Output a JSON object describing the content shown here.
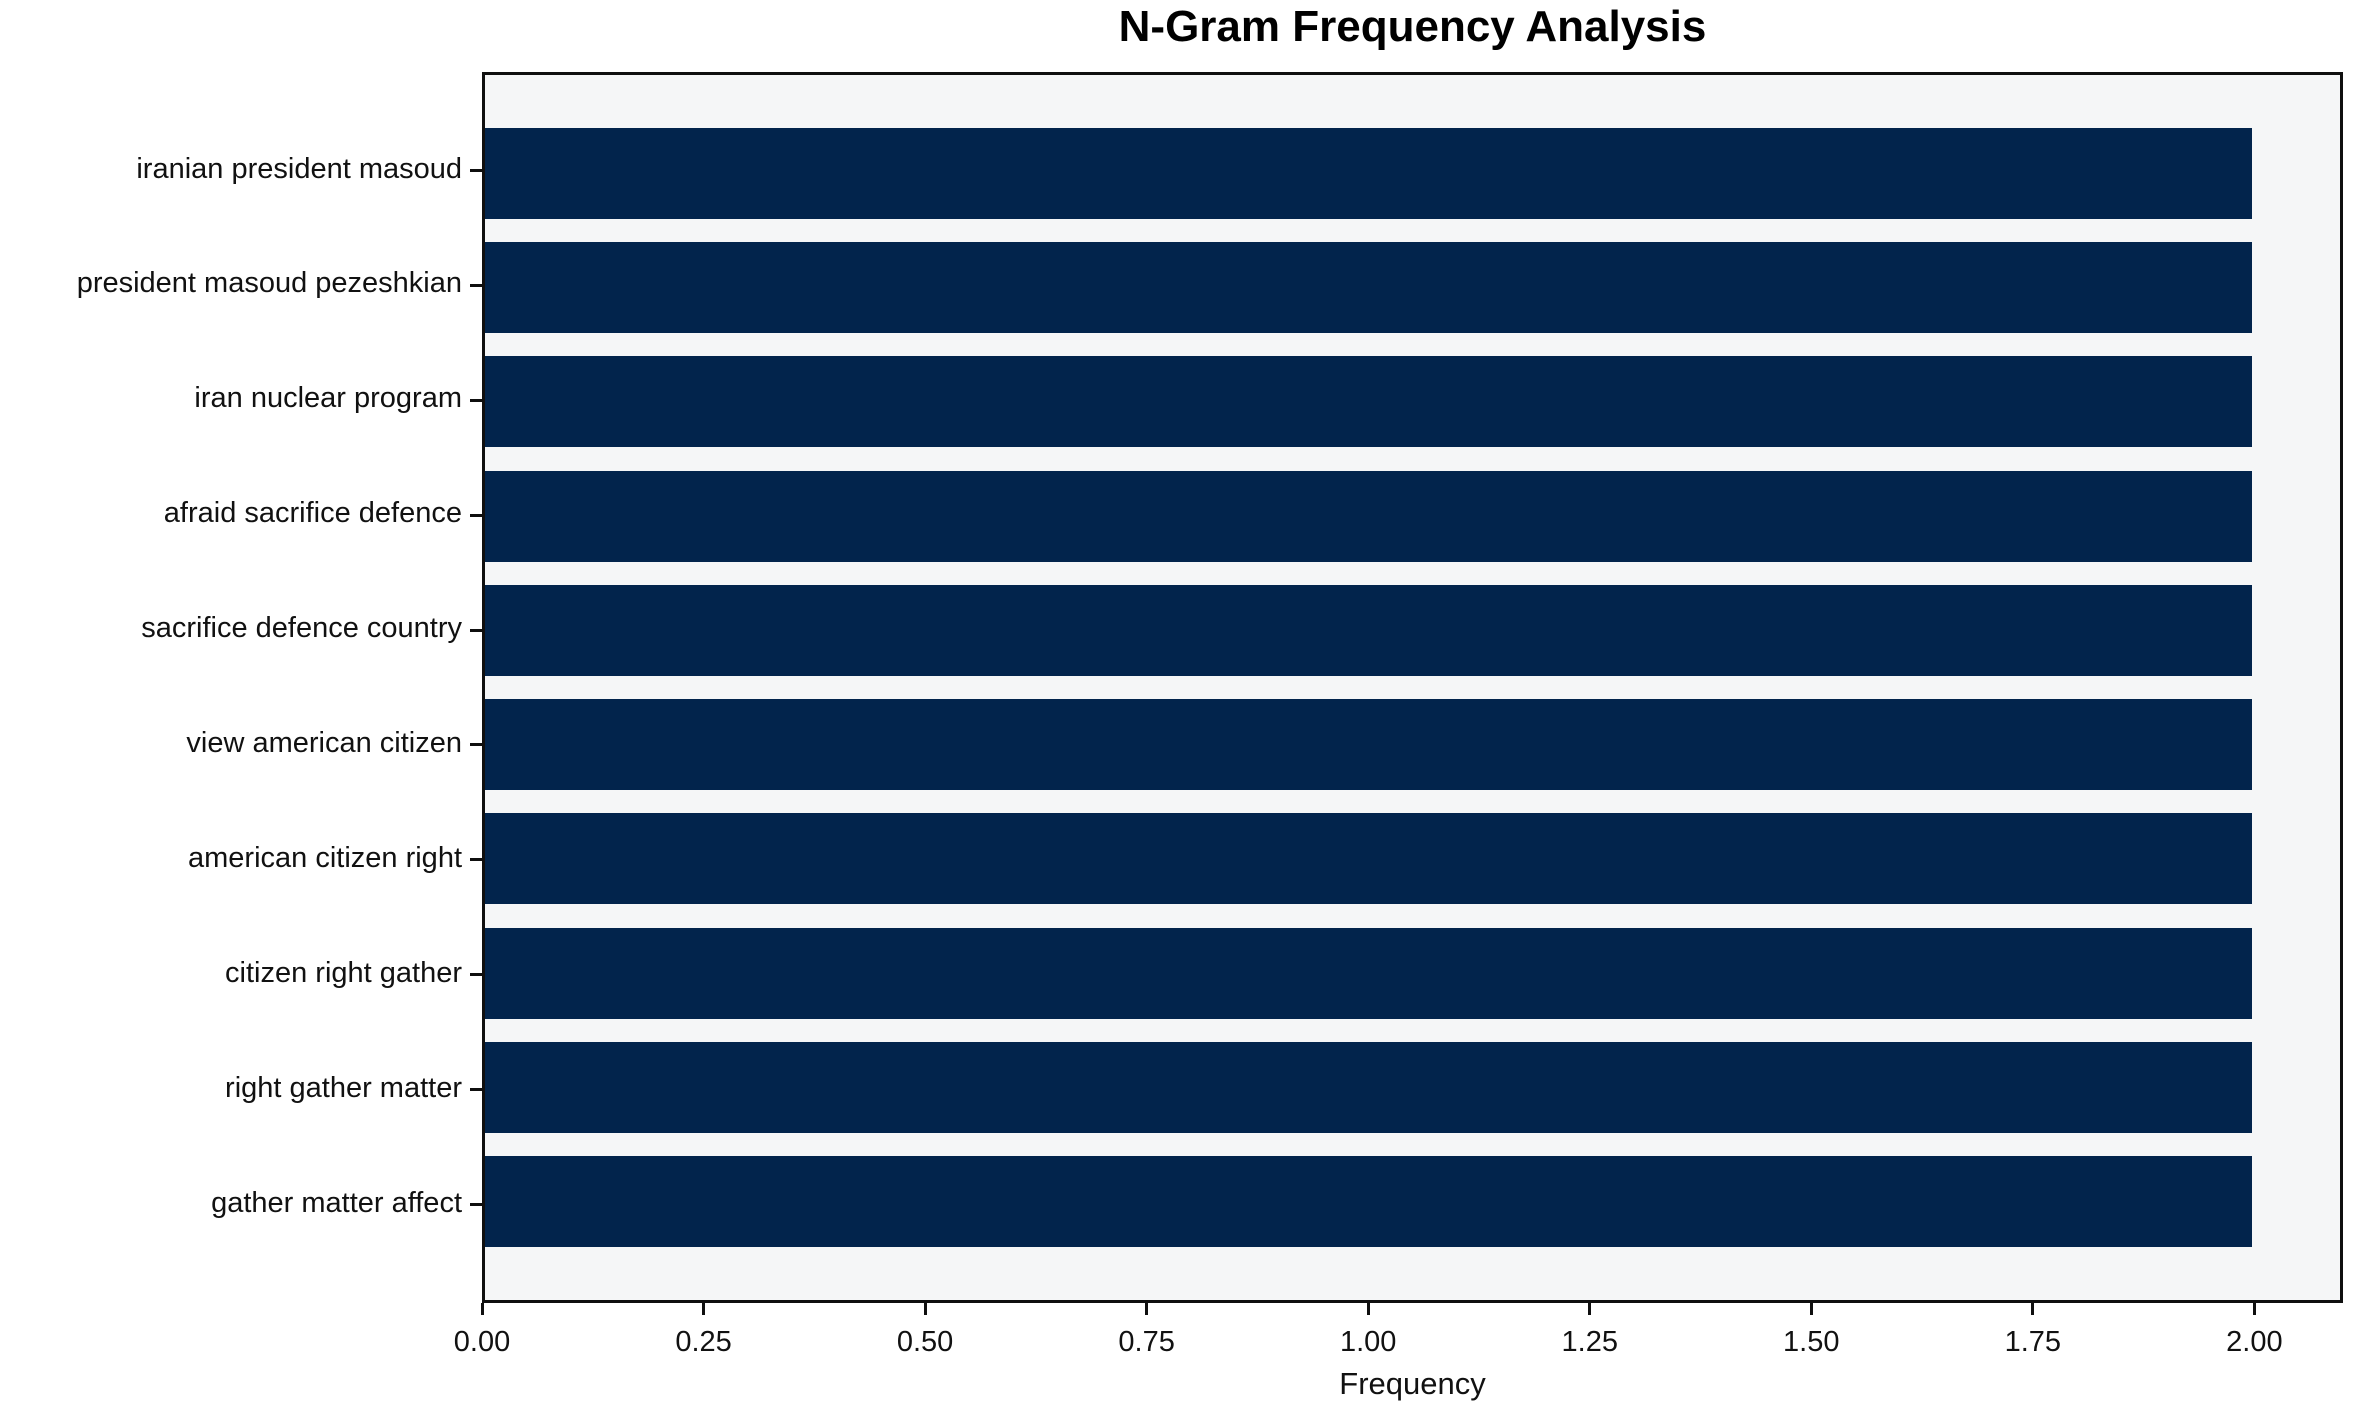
{
  "chart_data": {
    "type": "bar",
    "orientation": "horizontal",
    "title": "N-Gram Frequency Analysis",
    "xlabel": "Frequency",
    "ylabel": "",
    "categories": [
      "iranian president masoud",
      "president masoud pezeshkian",
      "iran nuclear program",
      "afraid sacrifice defence",
      "sacrifice defence country",
      "view american citizen",
      "american citizen right",
      "citizen right gather",
      "right gather matter",
      "gather matter affect"
    ],
    "values": [
      2,
      2,
      2,
      2,
      2,
      2,
      2,
      2,
      2,
      2
    ],
    "xlim": [
      0,
      2.1
    ],
    "xticks": [
      0,
      0.25,
      0.5,
      0.75,
      1.0,
      1.25,
      1.5,
      1.75,
      2.0
    ],
    "xtick_labels": [
      "0.00",
      "0.25",
      "0.50",
      "0.75",
      "1.00",
      "1.25",
      "1.50",
      "1.75",
      "2.00"
    ],
    "grid": false,
    "legend": "none",
    "bar_color": "#02244c",
    "plot_background": "#f5f6f7",
    "figure_background": "#ffffff",
    "spine_color": "#0f0f0f"
  }
}
